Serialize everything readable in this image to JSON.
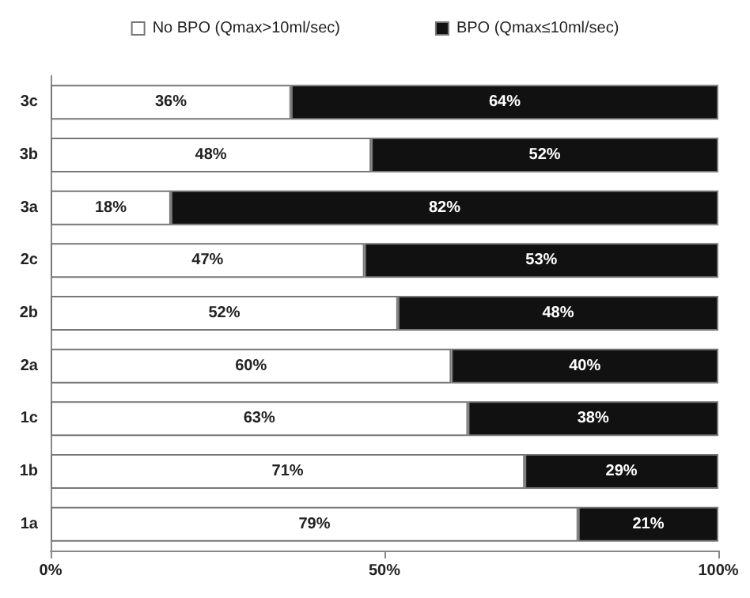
{
  "chart_data": {
    "type": "bar",
    "orientation": "horizontal",
    "stacked": true,
    "categories": [
      "3c",
      "3b",
      "3a",
      "2c",
      "2b",
      "2a",
      "1c",
      "1b",
      "1a"
    ],
    "series": [
      {
        "name": "No BPO (Qmax>10ml/sec)",
        "color": "#ffffff",
        "values": [
          36,
          48,
          18,
          47,
          52,
          60,
          62.5,
          71,
          79
        ],
        "value_labels": [
          "36%",
          "48%",
          "18%",
          "47%",
          "52%",
          "60%",
          "63%",
          "71%",
          "79%"
        ]
      },
      {
        "name": "BPO (Qmax≤10ml/sec)",
        "color": "#111111",
        "values": [
          64,
          52,
          82,
          53,
          48,
          40,
          37.5,
          29,
          21
        ],
        "value_labels": [
          "64%",
          "52%",
          "82%",
          "53%",
          "48%",
          "40%",
          "38%",
          "29%",
          "21%"
        ]
      }
    ],
    "xlim": [
      0,
      100
    ],
    "xticks": [
      {
        "value": 0,
        "label": "0%"
      },
      {
        "value": 50,
        "label": "50%"
      },
      {
        "value": 100,
        "label": "100%"
      }
    ],
    "grid": false,
    "legend": "top"
  }
}
